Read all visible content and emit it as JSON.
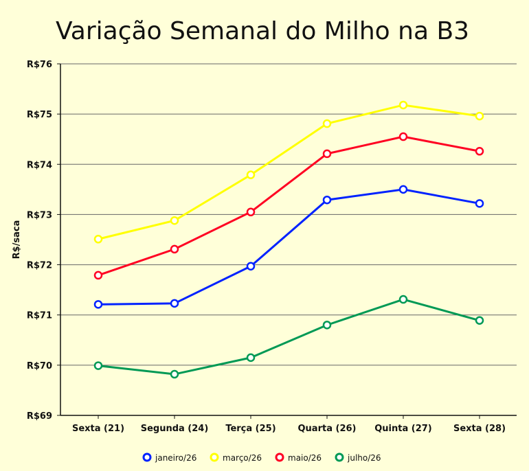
{
  "chart_data": {
    "type": "line",
    "title": "Variação Semanal do Milho na B3",
    "xlabel": "",
    "ylabel": "R$/saca",
    "ylim": [
      69,
      76
    ],
    "yticks": [
      69,
      70,
      71,
      72,
      73,
      74,
      75,
      76
    ],
    "ytick_labels": [
      "R$69",
      "R$70",
      "R$71",
      "R$72",
      "R$73",
      "R$74",
      "R$75",
      "R$76"
    ],
    "grid": "horizontal",
    "legend_position": "bottom",
    "categories": [
      "Sexta (21)",
      "Segunda (24)",
      "Terça (25)",
      "Quarta (26)",
      "Quinta (27)",
      "Sexta (28)"
    ],
    "series": [
      {
        "name": "janeiro/26",
        "color": "#0022ff",
        "values": [
          71.21,
          71.23,
          71.97,
          73.29,
          73.5,
          73.22
        ]
      },
      {
        "name": "março/26",
        "color": "#ffff00",
        "values": [
          72.51,
          72.88,
          73.79,
          74.81,
          75.18,
          74.96
        ]
      },
      {
        "name": "maio/26",
        "color": "#ff0022",
        "values": [
          71.79,
          72.31,
          73.05,
          74.21,
          74.55,
          74.26
        ]
      },
      {
        "name": "julho/26",
        "color": "#009955",
        "values": [
          69.99,
          69.82,
          70.15,
          70.8,
          71.31,
          70.89
        ]
      }
    ]
  }
}
